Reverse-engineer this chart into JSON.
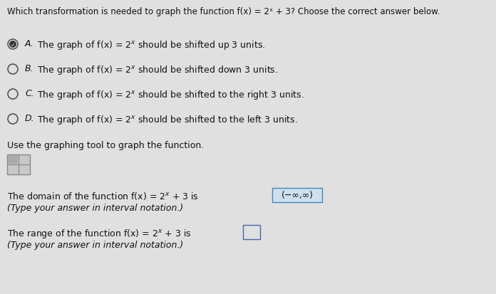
{
  "background_color": "#e0e0e0",
  "title_text": "Which transformation is needed to graph the function f(x) = 2ˣ + 3? Choose the correct answer below.",
  "options": [
    {
      "label": "A.",
      "text": "The graph of f(x) = 2$^x$ should be shifted up 3 units.",
      "selected": true
    },
    {
      "label": "B.",
      "text": "The graph of f(x) = 2$^x$ should be shifted down 3 units.",
      "selected": false
    },
    {
      "label": "C.",
      "text": "The graph of f(x) = 2$^x$ should be shifted to the right 3 units.",
      "selected": false
    },
    {
      "label": "D.",
      "text": "The graph of f(x) = 2$^x$ should be shifted to the left 3 units.",
      "selected": false
    }
  ],
  "graphing_tool_text": "Use the graphing tool to graph the function.",
  "domain_prefix": "The domain of the function f(x) = 2$^x$ + 3 is",
  "domain_answer": "(−∞,∞)",
  "domain_line2": "(Type your answer in interval notation.)",
  "range_prefix": "The range of the function f(x) = 2$^x$ + 3 is",
  "range_line2": "(Type your answer in interval notation.)",
  "text_color": "#111111",
  "font_size_title": 8.5,
  "font_size_option": 9.0,
  "font_size_body": 9.0,
  "circle_color": "#555555",
  "answer_box_color": "#cce0f0",
  "answer_box_edge": "#4488bb",
  "range_box_edge": "#4466aa"
}
